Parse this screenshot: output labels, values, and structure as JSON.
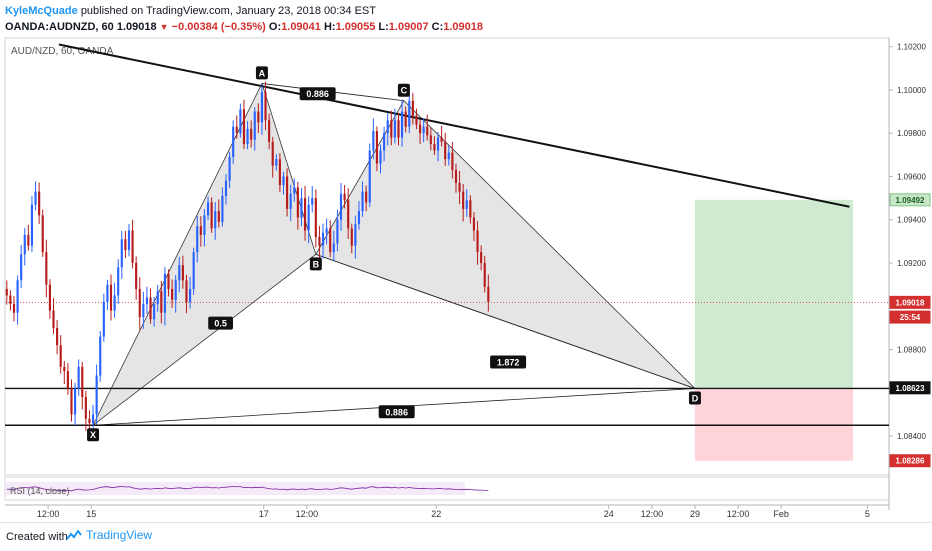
{
  "header": {
    "author": "KyleMcQuade",
    "published": "published on TradingView.com, January 23, 2018 00:34 EST",
    "symbol": "OANDA:AUDNZD, 60",
    "last": "1.09018",
    "change": "−0.00384 (−0.35%)",
    "open_label": "O:",
    "open": "1.09041",
    "high_label": "H:",
    "high": "1.09055",
    "low_label": "L:",
    "low": "1.09007",
    "close_label": "C:",
    "close": "1.09018"
  },
  "footer": {
    "created": "Created with",
    "brand": "TradingView"
  },
  "colors": {
    "up": "#2962ff",
    "down": "#b71c1c",
    "pattern_fill": "#e3e3e3",
    "profit": "#c8e6c9",
    "loss": "#ffcdd2",
    "rsi": "#7b1fa2"
  },
  "chart_data": {
    "type": "candlestick",
    "instrument": "AUD/NZD, 60, OANDA",
    "ylim": [
      1.0822,
      1.1024
    ],
    "y_ticks": [
      "1.10200",
      "1.10000",
      "1.09800",
      "1.09600",
      "1.09400",
      "1.09200",
      "1.08800",
      "1.08400"
    ],
    "x_ticks": [
      {
        "label": "12:00",
        "t": 12
      },
      {
        "label": "15",
        "t": 24
      },
      {
        "label": "17",
        "t": 72
      },
      {
        "label": "12:00",
        "t": 84
      },
      {
        "label": "22",
        "t": 120
      },
      {
        "label": "24",
        "t": 168
      },
      {
        "label": "12:00",
        "t": 180
      },
      {
        "label": "29",
        "t": 192
      },
      {
        "label": "12:00",
        "t": 204
      },
      {
        "label": "Feb",
        "t": 216
      },
      {
        "label": "5",
        "t": 240
      }
    ],
    "time_unit": "hours since Jan 12 00:00 (trading time)",
    "price_labels": [
      {
        "text": "1.09492",
        "value": 1.09492,
        "style": "green"
      },
      {
        "text": "1.09018",
        "value": 1.09018,
        "style": "red"
      },
      {
        "text": "25:54",
        "value": 1.0895,
        "style": "red"
      },
      {
        "text": "1.08623",
        "value": 1.08623,
        "style": "black"
      },
      {
        "text": "1.08286",
        "value": 1.08286,
        "style": "red"
      }
    ],
    "last_price": 1.09018,
    "pattern_points": [
      {
        "label": "X",
        "t": 24.5,
        "price": 1.0845
      },
      {
        "label": "A",
        "t": 71.5,
        "price": 1.1003
      },
      {
        "label": "B",
        "t": 86.5,
        "price": 1.0924
      },
      {
        "label": "C",
        "t": 111,
        "price": 1.0995
      },
      {
        "label": "D",
        "t": 192,
        "price": 1.0862
      }
    ],
    "ratios": [
      {
        "text": "0.886",
        "t": 87,
        "price": 1.0998
      },
      {
        "text": "0.5",
        "t": 60,
        "price": 1.0892
      },
      {
        "text": "1.872",
        "t": 140,
        "price": 1.0874
      },
      {
        "text": "0.886",
        "t": 109,
        "price": 1.0851
      }
    ],
    "trendline": {
      "t1": 15,
      "p1": 1.1021,
      "t2": 235,
      "p2": 1.0946
    },
    "support_lines": [
      1.0862,
      1.0845
    ],
    "position": {
      "t_start": 192,
      "t_end": 236,
      "entry": 1.08623,
      "target": 1.09492,
      "stop": 1.08286
    },
    "candles_close": [
      1.0905,
      1.0901,
      1.0897,
      1.0912,
      1.0924,
      1.0933,
      1.0928,
      1.0947,
      1.0953,
      1.0942,
      1.0925,
      1.091,
      1.0898,
      1.089,
      1.0882,
      1.0872,
      1.087,
      1.0862,
      1.085,
      1.0862,
      1.0872,
      1.0858,
      1.0848,
      1.0846,
      1.085,
      1.0868,
      1.0886,
      1.0902,
      1.091,
      1.0898,
      1.0905,
      1.0918,
      1.0931,
      1.0926,
      1.0935,
      1.092,
      1.0908,
      1.0895,
      1.0901,
      1.0904,
      1.0894,
      1.0901,
      1.0907,
      1.0897,
      1.0915,
      1.0908,
      1.0903,
      1.0912,
      1.0919,
      1.0912,
      1.0902,
      1.0908,
      1.0925,
      1.0937,
      1.0933,
      1.0942,
      1.0948,
      1.0936,
      1.0944,
      1.0939,
      1.0951,
      1.0958,
      1.0969,
      1.0983,
      1.098,
      1.0991,
      1.0975,
      1.0982,
      1.0977,
      1.099,
      1.0985,
      1.0999,
      1.0986,
      1.0976,
      1.0965,
      1.0968,
      1.0956,
      1.096,
      1.0945,
      1.0952,
      1.0955,
      1.0941,
      1.095,
      1.0935,
      1.0947,
      1.095,
      1.0932,
      1.0928,
      1.0934,
      1.0936,
      1.0925,
      1.0929,
      1.094,
      1.0952,
      1.0949,
      1.0936,
      1.0928,
      1.0938,
      1.0944,
      1.0953,
      1.0948,
      1.0972,
      1.0981,
      1.0966,
      1.0972,
      1.098,
      1.0986,
      1.0978,
      1.0986,
      1.0978,
      1.099,
      1.0983,
      1.0995,
      1.0988,
      1.0984,
      1.098,
      1.0983,
      1.0979,
      1.0975,
      1.0972,
      1.0978,
      1.0976,
      1.0968,
      1.0971,
      1.0963,
      1.0957,
      1.0953,
      1.0945,
      1.0949,
      1.0941,
      1.0935,
      1.0925,
      1.092,
      1.0909,
      1.0902
    ],
    "rsi_label": "RSI (14, close)"
  }
}
